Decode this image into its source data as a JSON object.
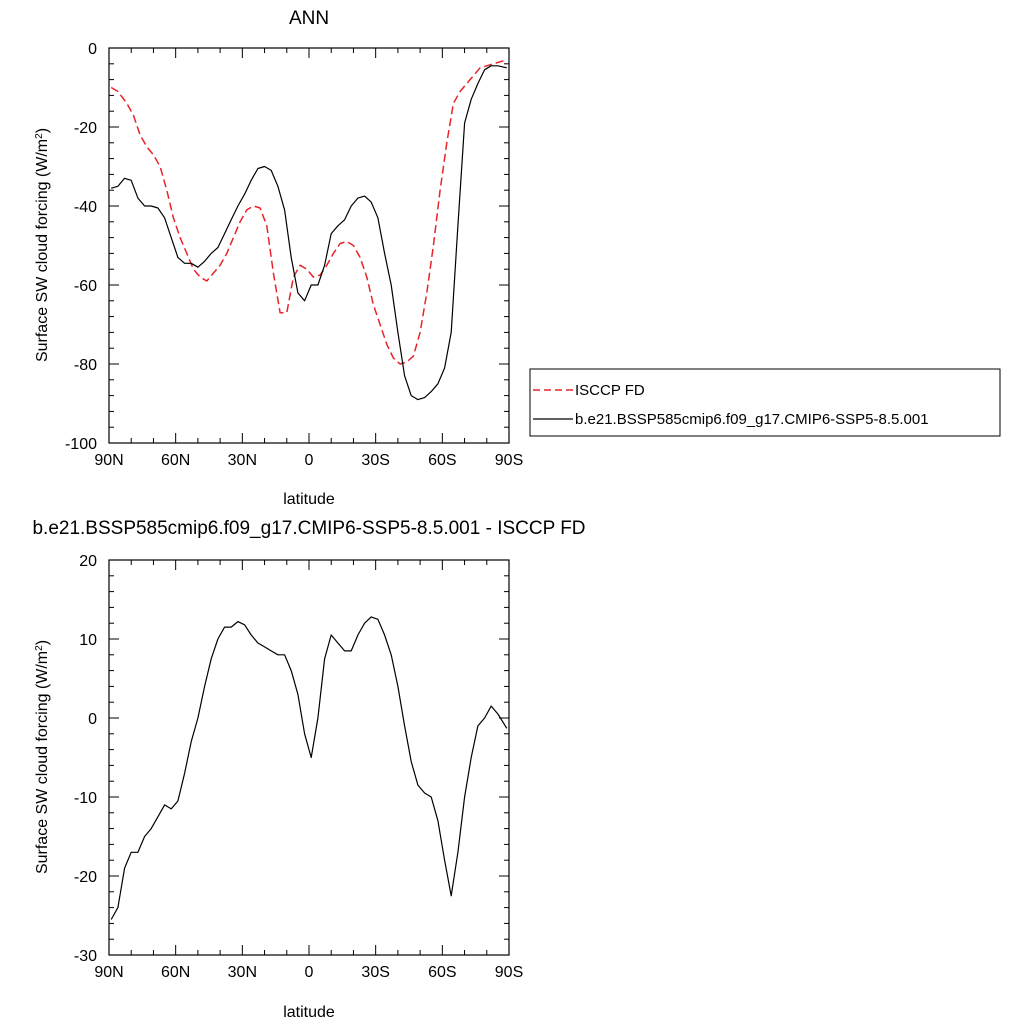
{
  "chart_data": [
    {
      "type": "line",
      "title": "ANN",
      "xlabel": "latitude",
      "ylabel": "Surface SW cloud forcing (W/m",
      "ylabel_sup": "2",
      "ylabel_close": ")",
      "xlim": [
        90,
        -90
      ],
      "ylim": [
        -100,
        0
      ],
      "xticks": [
        90,
        60,
        30,
        0,
        -30,
        -60,
        -90
      ],
      "xticklabels": [
        "90N",
        "60N",
        "30N",
        "0",
        "30S",
        "60S",
        "90S"
      ],
      "yticks": [
        0,
        -20,
        -40,
        -60,
        -80,
        -100
      ],
      "yticklabels": [
        "0",
        "-20",
        "-40",
        "-60",
        "-80",
        "-100"
      ],
      "legend": "right",
      "grid": false,
      "series": [
        {
          "name": "ISCCP FD",
          "color": "#e8242a",
          "style": "dashed",
          "x": [
            89,
            86,
            82,
            79,
            76,
            73,
            70,
            67,
            64,
            61,
            58,
            55,
            52,
            49,
            46,
            43,
            40,
            37,
            34,
            31,
            28,
            25,
            22,
            19,
            16,
            13,
            10,
            7,
            4,
            1,
            -2,
            -5,
            -8,
            -11,
            -14,
            -17,
            -20,
            -23,
            -26,
            -29,
            -32,
            -35,
            -38,
            -41,
            -44,
            -47,
            -50,
            -53,
            -56,
            -59,
            -62,
            -65,
            -68,
            -71,
            -74,
            -77,
            -80,
            -83,
            -86,
            -89
          ],
          "y": [
            -10,
            -11,
            -14,
            -17,
            -22,
            -25,
            -27,
            -30,
            -36,
            -43,
            -48,
            -52,
            -56,
            -58,
            -59,
            -57,
            -55,
            -52,
            -48,
            -44,
            -41,
            -40,
            -40.5,
            -45,
            -57,
            -67,
            -67,
            -58,
            -55,
            -56,
            -58,
            -57.5,
            -55,
            -52,
            -49.5,
            -49,
            -50,
            -53,
            -58,
            -65,
            -70,
            -75,
            -78.5,
            -80,
            -79.5,
            -78,
            -72,
            -62,
            -50,
            -36,
            -24,
            -14,
            -11,
            -9,
            -7,
            -5,
            -4.5,
            -4,
            -3.5,
            -3
          ]
        },
        {
          "name": "b.e21.BSSP585cmip6.f09_g17.CMIP6-SSP5-8.5.001",
          "color": "#000000",
          "style": "solid",
          "x": [
            89,
            86,
            83,
            80,
            77,
            74,
            71,
            68,
            65,
            62,
            59,
            56,
            53,
            50,
            47,
            44,
            41,
            38,
            35,
            32,
            29,
            26,
            23,
            20,
            17,
            14,
            11,
            8,
            5,
            2,
            -1,
            -4,
            -7,
            -10,
            -13,
            -16,
            -19,
            -22,
            -25,
            -28,
            -31,
            -34,
            -37,
            -40,
            -43,
            -46,
            -49,
            -52,
            -55,
            -58,
            -61,
            -64,
            -67,
            -70,
            -73,
            -76,
            -79,
            -82,
            -85,
            -89
          ],
          "y": [
            -35.5,
            -35,
            -33,
            -33.5,
            -38,
            -40,
            -40,
            -40.5,
            -43,
            -48,
            -53,
            -54.5,
            -54.5,
            -55.5,
            -54,
            -52,
            -50.5,
            -47,
            -43.5,
            -40,
            -37,
            -33.5,
            -30.5,
            -30,
            -31,
            -35,
            -41,
            -53,
            -62,
            -64,
            -60,
            -60,
            -55,
            -47,
            -45,
            -43.5,
            -40,
            -38,
            -37.5,
            -39,
            -43,
            -52,
            -60,
            -72,
            -83,
            -88,
            -89,
            -88.5,
            -87,
            -85,
            -81,
            -72,
            -45,
            -19,
            -13,
            -9,
            -5.5,
            -4.5,
            -4.5,
            -5
          ]
        }
      ]
    },
    {
      "type": "line",
      "title": "b.e21.BSSP585cmip6.f09_g17.CMIP6-SSP5-8.5.001 - ISCCP FD",
      "xlabel": "latitude",
      "ylabel": "Surface SW cloud forcing (W/m",
      "ylabel_sup": "2",
      "ylabel_close": ")",
      "xlim": [
        90,
        -90
      ],
      "ylim": [
        -30,
        20
      ],
      "xticks": [
        90,
        60,
        30,
        0,
        -30,
        -60,
        -90
      ],
      "xticklabels": [
        "90N",
        "60N",
        "30N",
        "0",
        "30S",
        "60S",
        "90S"
      ],
      "yticks": [
        20,
        10,
        0,
        -10,
        -20,
        -30
      ],
      "yticklabels": [
        "20",
        "10",
        "0",
        "-10",
        "-20",
        "-30"
      ],
      "grid": false,
      "series": [
        {
          "color": "#000000",
          "style": "solid",
          "x": [
            89,
            86,
            83,
            80,
            77,
            74,
            71,
            68,
            65,
            62,
            59,
            56,
            53,
            50,
            47,
            44,
            41,
            38,
            35,
            32,
            29,
            26,
            23,
            20,
            17,
            14,
            11,
            8,
            5,
            2,
            -1,
            -4,
            -7,
            -10,
            -13,
            -16,
            -19,
            -22,
            -25,
            -28,
            -31,
            -34,
            -37,
            -40,
            -43,
            -46,
            -49,
            -52,
            -55,
            -58,
            -61,
            -64,
            -67,
            -70,
            -73,
            -76,
            -79,
            -82,
            -85,
            -89
          ],
          "y": [
            -25.5,
            -24,
            -19,
            -17,
            -17,
            -15,
            -14,
            -12.5,
            -11,
            -11.5,
            -10.5,
            -7,
            -3,
            0,
            4,
            7.5,
            10,
            11.5,
            11.5,
            12.2,
            11.8,
            10.5,
            9.5,
            9,
            8.5,
            8,
            8,
            6,
            3,
            -2,
            -5,
            0,
            7.5,
            10.5,
            9.5,
            8.5,
            8.5,
            10.5,
            12,
            12.8,
            12.5,
            10.5,
            8,
            4,
            -1,
            -5.5,
            -8.5,
            -9.5,
            -10,
            -13,
            -18,
            -22.5,
            -17,
            -10,
            -5,
            -1,
            0,
            1.5,
            0.5,
            -1.3
          ]
        }
      ]
    }
  ]
}
